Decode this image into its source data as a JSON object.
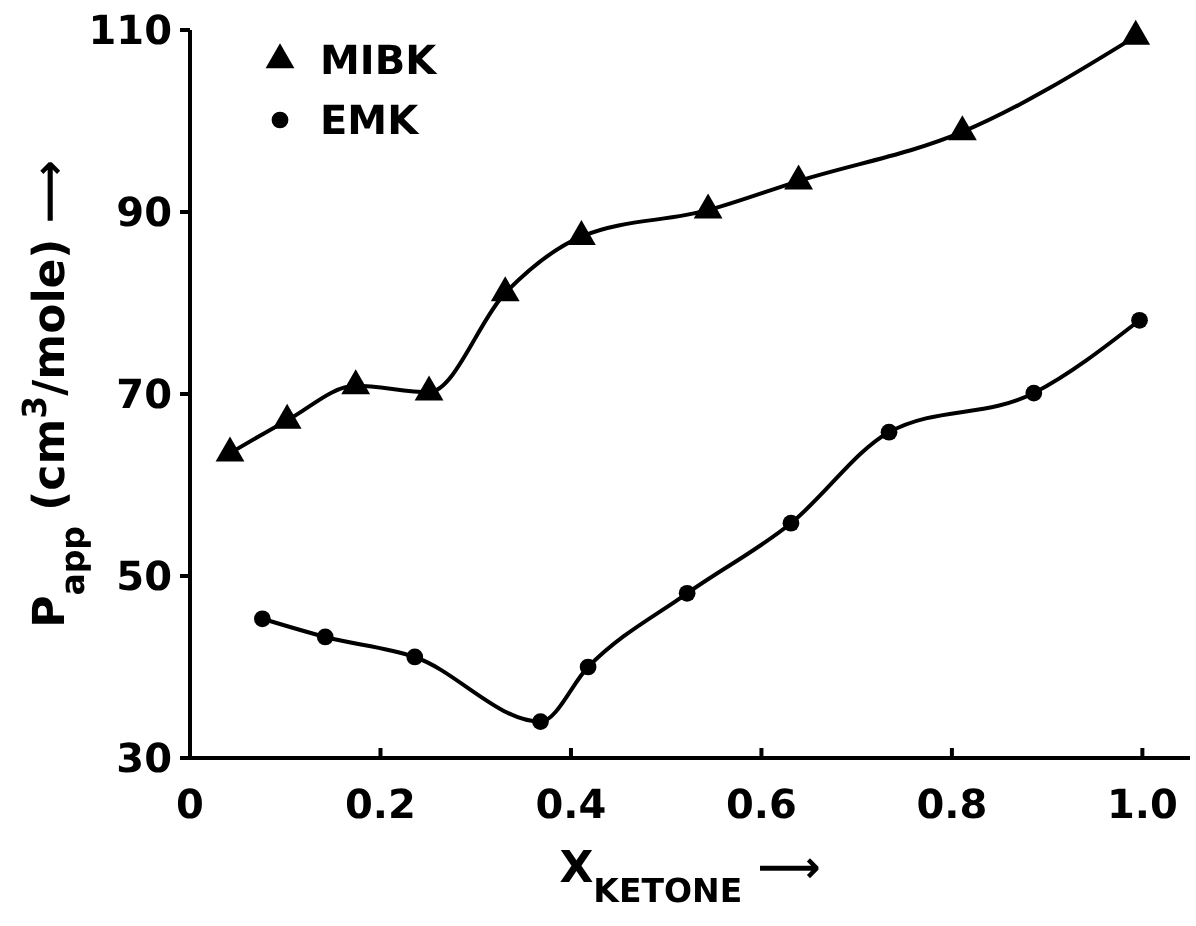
{
  "chart_data": {
    "type": "line",
    "xlabel": "X$_{KETONE}$ ⟶",
    "ylabel": "P$_{app}$ (cm$^{3}$/mole) ⟶",
    "xlim": [
      0,
      1.05
    ],
    "ylim": [
      30,
      110
    ],
    "xticks": [
      0,
      0.2,
      0.4,
      0.6,
      0.8,
      {
        "value": 1.0,
        "label": "1.0"
      }
    ],
    "yticks": [
      30,
      50,
      70,
      90,
      110
    ],
    "grid": false,
    "legend": "top left",
    "line_style": "solid",
    "series": [
      {
        "name": "MIBK",
        "color": "#000000",
        "marker": "triangle",
        "x": [
          0.042,
          0.102,
          0.174,
          0.251,
          0.331,
          0.411,
          0.544,
          0.639,
          0.811,
          0.993
        ],
        "values": [
          63.5,
          67.1,
          70.9,
          70.2,
          81.1,
          87.3,
          90.2,
          93.4,
          98.8,
          109.3
        ]
      },
      {
        "name": "EMK",
        "color": "#000000",
        "marker": "circle",
        "x": [
          0.076,
          0.142,
          0.236,
          0.368,
          0.418,
          0.522,
          0.631,
          0.734,
          0.886,
          0.997
        ],
        "values": [
          45.3,
          43.3,
          41.1,
          34.0,
          40.0,
          48.1,
          55.8,
          65.8,
          70.1,
          78.1
        ]
      }
    ]
  }
}
